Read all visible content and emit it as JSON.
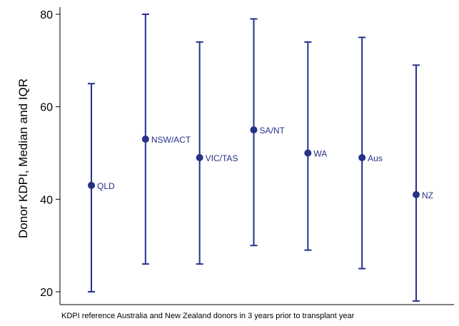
{
  "chart_data": {
    "type": "scatter",
    "title": "",
    "xlabel": "KDPI reference Australia and New Zealand donors in 3 years prior to transplant year",
    "ylabel": "Donor KDPI, Median and IQR",
    "ylim": [
      18,
      82
    ],
    "yticks": [
      20,
      40,
      60,
      80
    ],
    "grid": false,
    "legend": "none",
    "colors": {
      "series": "#26318a",
      "axis": "#000000"
    },
    "series": [
      {
        "points": [
          {
            "label": "QLD",
            "x": 1,
            "median": 43,
            "q1": 20,
            "q3": 65
          },
          {
            "label": "NSW/ACT",
            "x": 2,
            "median": 53,
            "q1": 26,
            "q3": 80
          },
          {
            "label": "VIC/TAS",
            "x": 3,
            "median": 49,
            "q1": 26,
            "q3": 74
          },
          {
            "label": "SA/NT",
            "x": 4,
            "median": 55,
            "q1": 30,
            "q3": 79
          },
          {
            "label": "WA",
            "x": 5,
            "median": 50,
            "q1": 29,
            "q3": 74
          },
          {
            "label": "Aus",
            "x": 6,
            "median": 49,
            "q1": 25,
            "q3": 75
          },
          {
            "label": "NZ",
            "x": 7,
            "median": 41,
            "q1": 18,
            "q3": 69
          }
        ]
      }
    ]
  }
}
